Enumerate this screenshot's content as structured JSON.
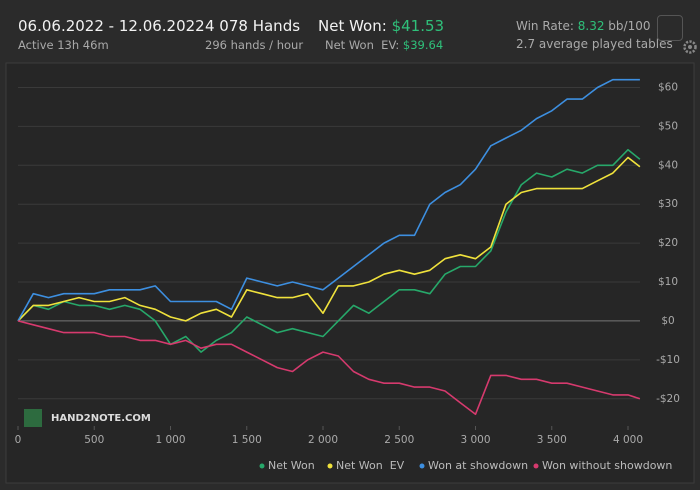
{
  "header": {
    "date_range": "06.06.2022 - 12.06.2022",
    "active": "Active 13h 46m",
    "hands": "4 078 Hands",
    "hands_per_hour": "296 hands / hour",
    "net_won_label": "Net Won:",
    "net_won_value": "$41.53",
    "net_won_ev_label": "Net Won  EV:",
    "net_won_ev_value": "$39.64",
    "win_rate_label": "Win Rate:",
    "win_rate_value": "8.32",
    "win_rate_unit": "bb/100",
    "tables": "2.7 average played tables"
  },
  "logo": "HAND2NOTE.COM",
  "chart_data": {
    "type": "line",
    "x": [
      0,
      100,
      200,
      300,
      400,
      500,
      600,
      700,
      800,
      900,
      1000,
      1100,
      1200,
      1300,
      1400,
      1500,
      1600,
      1700,
      1800,
      1900,
      2000,
      2100,
      2200,
      2300,
      2400,
      2500,
      2600,
      2700,
      2800,
      2900,
      3000,
      3100,
      3200,
      3300,
      3400,
      3500,
      3600,
      3700,
      3800,
      3900,
      4000,
      4078
    ],
    "series": [
      {
        "name": "Net Won",
        "color": "#27a86a",
        "values": [
          0,
          4,
          3,
          5,
          4,
          4,
          3,
          4,
          3,
          0,
          -6,
          -4,
          -8,
          -5,
          -3,
          1,
          -1,
          -3,
          -2,
          -3,
          -4,
          0,
          4,
          2,
          5,
          8,
          8,
          7,
          12,
          14,
          14,
          18,
          28,
          35,
          38,
          37,
          39,
          38,
          40,
          40,
          44,
          41.53
        ]
      },
      {
        "name": "Net Won  EV",
        "color": "#f0e23c",
        "values": [
          0,
          4,
          4,
          5,
          6,
          5,
          5,
          6,
          4,
          3,
          1,
          0,
          2,
          3,
          1,
          8,
          7,
          6,
          6,
          7,
          2,
          9,
          9,
          10,
          12,
          13,
          12,
          13,
          16,
          17,
          16,
          19,
          30,
          33,
          34,
          34,
          34,
          34,
          36,
          38,
          42,
          39.64
        ]
      },
      {
        "name": "Won at showdown",
        "color": "#3d8fe0",
        "values": [
          0,
          7,
          6,
          7,
          7,
          7,
          8,
          8,
          8,
          9,
          5,
          5,
          5,
          5,
          3,
          11,
          10,
          9,
          10,
          9,
          8,
          11,
          14,
          17,
          20,
          22,
          22,
          30,
          33,
          35,
          39,
          45,
          47,
          49,
          52,
          54,
          57,
          57,
          60,
          62,
          62,
          62
        ]
      },
      {
        "name": "Won without showdown",
        "color": "#d63a6e",
        "values": [
          0,
          -1,
          -2,
          -3,
          -3,
          -3,
          -4,
          -4,
          -5,
          -5,
          -6,
          -5,
          -7,
          -6,
          -6,
          -8,
          -10,
          -12,
          -13,
          -10,
          -8,
          -9,
          -13,
          -15,
          -16,
          -16,
          -17,
          -17,
          -18,
          -21,
          -24,
          -14,
          -14,
          -15,
          -15,
          -16,
          -16,
          -17,
          -18,
          -19,
          -19,
          -20
        ]
      }
    ],
    "xlim": [
      0,
      4078
    ],
    "xticks": [
      0,
      {
        "value": 500,
        "label": "500"
      },
      {
        "value": 1000,
        "label": "1 000"
      },
      {
        "value": 1500,
        "label": "1 500"
      },
      {
        "value": 2000,
        "label": "2 000"
      },
      {
        "value": 2500,
        "label": "2 500"
      },
      {
        "value": 3000,
        "label": "3 000"
      },
      {
        "value": 3500,
        "label": "3 500"
      },
      {
        "value": 4000,
        "label": "4 000"
      }
    ],
    "ylim": [
      -27,
      65
    ],
    "yticks": [
      {
        "value": -20,
        "label": "-$20"
      },
      {
        "value": -10,
        "label": "-$10"
      },
      {
        "value": 0,
        "label": "$0"
      },
      {
        "value": 10,
        "label": "$10"
      },
      {
        "value": 20,
        "label": "$20"
      },
      {
        "value": 30,
        "label": "$30"
      },
      {
        "value": 40,
        "label": "$40"
      },
      {
        "value": 50,
        "label": "$50"
      },
      {
        "value": 60,
        "label": "$60"
      }
    ],
    "grid": true
  }
}
